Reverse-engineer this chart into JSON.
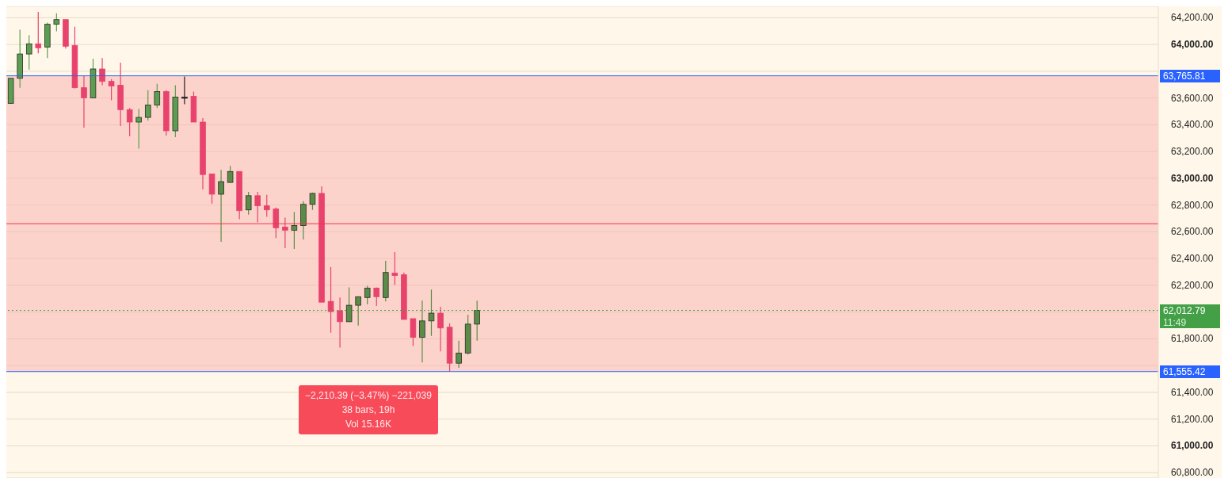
{
  "chart_data": {
    "type": "candlestick",
    "categories": [
      null,
      null,
      null,
      null,
      null,
      null,
      null,
      null,
      null,
      null,
      null,
      null,
      null,
      null,
      null,
      null,
      null,
      null,
      null,
      null,
      null,
      null,
      null,
      null,
      null,
      null,
      null,
      null,
      null,
      null,
      null,
      null,
      null,
      null,
      null,
      null,
      null,
      null,
      null,
      null,
      null,
      null,
      null,
      null,
      null,
      null,
      null,
      null,
      null,
      null,
      null,
      null,
      null,
      null,
      null,
      null,
      null,
      null,
      null,
      null,
      null,
      null,
      null,
      null,
      null,
      null,
      null,
      null,
      null,
      null,
      null,
      null,
      null,
      null,
      null,
      null,
      null,
      null,
      null,
      null,
      null,
      null,
      null,
      null,
      null,
      null,
      null,
      null,
      null,
      null,
      null,
      null,
      null,
      null,
      null,
      null,
      null,
      null,
      null,
      null,
      null,
      null,
      null,
      null,
      null,
      null,
      null,
      null,
      null,
      null,
      null,
      null,
      null,
      null,
      null,
      null,
      null,
      null,
      null,
      null,
      null,
      null,
      null,
      null,
      null,
      null
    ],
    "ohlc": [
      [
        63560,
        63747,
        63560,
        63747
      ],
      [
        63747,
        64110,
        63677,
        63929
      ],
      [
        63929,
        64069,
        63812,
        64005
      ],
      [
        64005,
        64244,
        63934,
        63975
      ],
      [
        63981,
        64163,
        63899,
        64151
      ],
      [
        64151,
        64233,
        64098,
        64186
      ],
      [
        64186,
        64186,
        63969,
        63987
      ],
      [
        63993,
        64133,
        63671,
        63677
      ],
      [
        63677,
        63765,
        63379,
        63601
      ],
      [
        63601,
        63893,
        63601,
        63817
      ],
      [
        63817,
        63899,
        63695,
        63724
      ],
      [
        63724,
        63741,
        63583,
        63689
      ],
      [
        63695,
        63864,
        63390,
        63513
      ],
      [
        63513,
        63525,
        63314,
        63420
      ],
      [
        63420,
        63519,
        63221,
        63455
      ],
      [
        63455,
        63659,
        63431,
        63548
      ],
      [
        63548,
        63706,
        63525,
        63648
      ],
      [
        63648,
        63659,
        63320,
        63355
      ],
      [
        63355,
        63695,
        63308,
        63607
      ],
      [
        63607,
        63760,
        63554,
        63607
      ],
      [
        63613,
        63648,
        63420,
        63420
      ],
      [
        63420,
        63449,
        62917,
        63028
      ],
      [
        63033,
        63033,
        62811,
        62881
      ],
      [
        62881,
        63063,
        62525,
        62975
      ],
      [
        62969,
        63092,
        62969,
        63051
      ],
      [
        63051,
        63051,
        62694,
        62758
      ],
      [
        62764,
        62899,
        62729,
        62870
      ],
      [
        62870,
        62899,
        62671,
        62794
      ],
      [
        62794,
        62876,
        62712,
        62764
      ],
      [
        62770,
        62782,
        62554,
        62630
      ],
      [
        62636,
        62706,
        62478,
        62612
      ],
      [
        62612,
        62747,
        62472,
        62647
      ],
      [
        62647,
        62829,
        62542,
        62805
      ],
      [
        62805,
        62893,
        62764,
        62887
      ],
      [
        62887,
        62940,
        62074,
        62074
      ],
      [
        62080,
        62337,
        61846,
        62004
      ],
      [
        62010,
        62109,
        61735,
        61928
      ],
      [
        61928,
        62185,
        61928,
        62051
      ],
      [
        62051,
        62115,
        61899,
        62115
      ],
      [
        62109,
        62197,
        62057,
        62179
      ],
      [
        62179,
        62185,
        62045,
        62115
      ],
      [
        62109,
        62384,
        62080,
        62296
      ],
      [
        62291,
        62449,
        62203,
        62273
      ],
      [
        62279,
        62296,
        61945,
        61945
      ],
      [
        61951,
        61951,
        61746,
        61811
      ],
      [
        61811,
        62086,
        61624,
        61934
      ],
      [
        61934,
        62168,
        61822,
        61992
      ],
      [
        61992,
        62039,
        61706,
        61881
      ],
      [
        61887,
        61916,
        61555,
        61618
      ],
      [
        61618,
        61787,
        61583,
        61694
      ],
      [
        61694,
        61981,
        61682,
        61910
      ],
      [
        61910,
        62086,
        61787,
        62013
      ],
      null,
      null,
      null,
      null,
      null,
      null,
      null,
      null,
      null,
      null,
      null,
      null,
      null,
      null,
      null,
      null,
      null,
      null,
      null,
      null,
      null,
      null,
      null,
      null,
      null,
      null,
      null,
      null,
      null,
      null,
      null,
      null,
      null,
      null,
      null,
      null,
      null,
      null,
      null,
      null,
      null,
      null,
      null,
      null,
      null,
      null,
      null,
      null,
      null,
      null,
      null,
      null,
      null,
      null,
      null,
      null,
      null,
      null,
      null,
      null,
      null,
      null,
      null,
      null,
      null,
      null,
      null,
      null,
      null,
      null,
      null,
      null,
      null,
      null
    ],
    "colors": [
      "#5b9e4f",
      "#5b9e4f",
      "#5b9e4f",
      "#e8436d",
      "#5b9e4f",
      "#5b9e4f",
      "#e8436d",
      "#e8436d",
      "#e8436d",
      "#5b9e4f",
      "#e8436d",
      "#e8436d",
      "#e8436d",
      "#e8436d",
      "#5b9e4f",
      "#5b9e4f",
      "#5b9e4f",
      "#e8436d",
      "#5b9e4f",
      "#222222",
      "#e8436d",
      "#e8436d",
      "#e8436d",
      "#5b8c46",
      "#5b8c46",
      "#e8436d",
      "#5b8c46",
      "#e8436d",
      "#e8436d",
      "#e8436d",
      "#e8436d",
      "#5b8c46",
      "#5b8c46",
      "#5b8c46",
      "#e8436d",
      "#e8436d",
      "#e8436d",
      "#5b8c46",
      "#5b8c46",
      "#5b8c46",
      "#e8436d",
      "#5b8c46",
      "#e8436d",
      "#e8436d",
      "#e8436d",
      "#5b8c46",
      "#5b8c46",
      "#e8436d",
      "#e8436d",
      "#5b8c46",
      "#5b8c46",
      "#5b8c46",
      null,
      null,
      null,
      null,
      null,
      null,
      null,
      null,
      null,
      null,
      null,
      null,
      null,
      null,
      null,
      null,
      null,
      null,
      null,
      null,
      null,
      null,
      null,
      null,
      null,
      null,
      null,
      null,
      null,
      null,
      null,
      null,
      null,
      null,
      null,
      null,
      null,
      null,
      null,
      null,
      null,
      null,
      null,
      null,
      null,
      null,
      null,
      null,
      null,
      null,
      null,
      null,
      null,
      null,
      null,
      null,
      null,
      null,
      null,
      null,
      null,
      null,
      null,
      null,
      null,
      null,
      null,
      null,
      null,
      null,
      null,
      null,
      null,
      null
    ],
    "ylim": [
      60760,
      64285
    ],
    "yticks": [
      {
        "value": 60800,
        "label": "60,800.00"
      },
      {
        "value": 61000,
        "label": "61,000.00"
      },
      {
        "value": 61200,
        "label": "61,200.00"
      },
      {
        "value": 61400,
        "label": "61,400.00"
      },
      {
        "value": 61600,
        "label": null
      },
      {
        "value": 61800,
        "label": "61,800.00"
      },
      {
        "value": 62000,
        "label": null
      },
      {
        "value": 62200,
        "label": "62,200.00"
      },
      {
        "value": 62400,
        "label": "62,400.00"
      },
      {
        "value": 62600,
        "label": "62,600.00"
      },
      {
        "value": 62800,
        "label": "62,800.00"
      },
      {
        "value": 63000,
        "label": "63,000.00"
      },
      {
        "value": 63200,
        "label": "63,200.00"
      },
      {
        "value": 63400,
        "label": "63,400.00"
      },
      {
        "value": 63600,
        "label": "63,600.00"
      },
      {
        "value": 63800,
        "label": null
      },
      {
        "value": 64000,
        "label": "64,000.00"
      },
      {
        "value": 64200,
        "label": "64,200.00"
      }
    ],
    "grid": "y",
    "tick_labels": "y",
    "bands": [
      {
        "axis": "y",
        "from": 61555.42,
        "to": 63765.81,
        "color": "#f9b5b0"
      }
    ],
    "ref_lines": [
      {
        "axis": "y",
        "value": 63765.81,
        "label": "63,765.81",
        "color": "#2962ff"
      },
      {
        "axis": "y",
        "value": 61555.42,
        "label": "61,555.42",
        "color": "#2962ff"
      },
      {
        "axis": "y",
        "value": 62660,
        "color": "#f23645"
      },
      {
        "axis": "y",
        "value": 62012.79,
        "label": "62,012.79",
        "color": "#43a047",
        "line_style": "dotted"
      }
    ],
    "annotations": [
      "−2,210.39 (−3.47%) −221,039",
      "38 bars, 19h",
      "Vol 15.16K",
      "11:49"
    ]
  }
}
